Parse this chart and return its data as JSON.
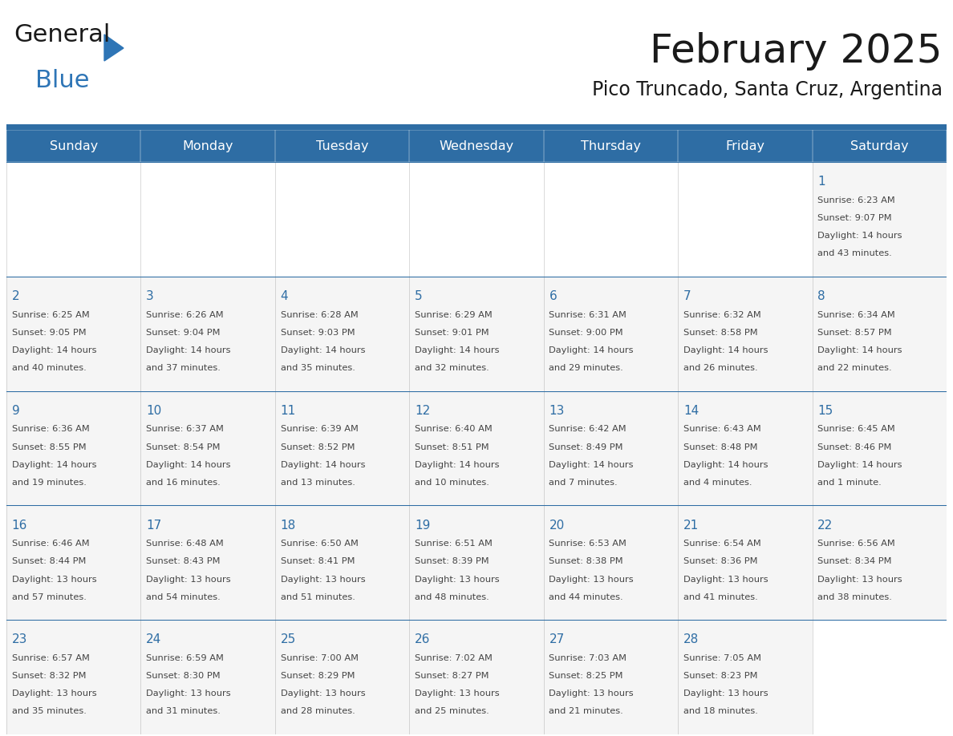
{
  "title": "February 2025",
  "subtitle": "Pico Truncado, Santa Cruz, Argentina",
  "days_of_week": [
    "Sunday",
    "Monday",
    "Tuesday",
    "Wednesday",
    "Thursday",
    "Friday",
    "Saturday"
  ],
  "header_bg": "#2E6DA4",
  "header_text": "#FFFFFF",
  "cell_bg_light": "#F5F5F5",
  "cell_bg_white": "#FFFFFF",
  "grid_line_color": "#2E6DA4",
  "day_num_color": "#2E6DA4",
  "text_color": "#444444",
  "logo_general_color": "#1a1a1a",
  "logo_blue_color": "#2E75B6",
  "calendar_data": [
    {
      "day": 1,
      "col": 6,
      "row": 0,
      "sunrise": "6:23 AM",
      "sunset": "9:07 PM",
      "daylight": "14 hours and 43 minutes."
    },
    {
      "day": 2,
      "col": 0,
      "row": 1,
      "sunrise": "6:25 AM",
      "sunset": "9:05 PM",
      "daylight": "14 hours and 40 minutes."
    },
    {
      "day": 3,
      "col": 1,
      "row": 1,
      "sunrise": "6:26 AM",
      "sunset": "9:04 PM",
      "daylight": "14 hours and 37 minutes."
    },
    {
      "day": 4,
      "col": 2,
      "row": 1,
      "sunrise": "6:28 AM",
      "sunset": "9:03 PM",
      "daylight": "14 hours and 35 minutes."
    },
    {
      "day": 5,
      "col": 3,
      "row": 1,
      "sunrise": "6:29 AM",
      "sunset": "9:01 PM",
      "daylight": "14 hours and 32 minutes."
    },
    {
      "day": 6,
      "col": 4,
      "row": 1,
      "sunrise": "6:31 AM",
      "sunset": "9:00 PM",
      "daylight": "14 hours and 29 minutes."
    },
    {
      "day": 7,
      "col": 5,
      "row": 1,
      "sunrise": "6:32 AM",
      "sunset": "8:58 PM",
      "daylight": "14 hours and 26 minutes."
    },
    {
      "day": 8,
      "col": 6,
      "row": 1,
      "sunrise": "6:34 AM",
      "sunset": "8:57 PM",
      "daylight": "14 hours and 22 minutes."
    },
    {
      "day": 9,
      "col": 0,
      "row": 2,
      "sunrise": "6:36 AM",
      "sunset": "8:55 PM",
      "daylight": "14 hours and 19 minutes."
    },
    {
      "day": 10,
      "col": 1,
      "row": 2,
      "sunrise": "6:37 AM",
      "sunset": "8:54 PM",
      "daylight": "14 hours and 16 minutes."
    },
    {
      "day": 11,
      "col": 2,
      "row": 2,
      "sunrise": "6:39 AM",
      "sunset": "8:52 PM",
      "daylight": "14 hours and 13 minutes."
    },
    {
      "day": 12,
      "col": 3,
      "row": 2,
      "sunrise": "6:40 AM",
      "sunset": "8:51 PM",
      "daylight": "14 hours and 10 minutes."
    },
    {
      "day": 13,
      "col": 4,
      "row": 2,
      "sunrise": "6:42 AM",
      "sunset": "8:49 PM",
      "daylight": "14 hours and 7 minutes."
    },
    {
      "day": 14,
      "col": 5,
      "row": 2,
      "sunrise": "6:43 AM",
      "sunset": "8:48 PM",
      "daylight": "14 hours and 4 minutes."
    },
    {
      "day": 15,
      "col": 6,
      "row": 2,
      "sunrise": "6:45 AM",
      "sunset": "8:46 PM",
      "daylight": "14 hours and 1 minute."
    },
    {
      "day": 16,
      "col": 0,
      "row": 3,
      "sunrise": "6:46 AM",
      "sunset": "8:44 PM",
      "daylight": "13 hours and 57 minutes."
    },
    {
      "day": 17,
      "col": 1,
      "row": 3,
      "sunrise": "6:48 AM",
      "sunset": "8:43 PM",
      "daylight": "13 hours and 54 minutes."
    },
    {
      "day": 18,
      "col": 2,
      "row": 3,
      "sunrise": "6:50 AM",
      "sunset": "8:41 PM",
      "daylight": "13 hours and 51 minutes."
    },
    {
      "day": 19,
      "col": 3,
      "row": 3,
      "sunrise": "6:51 AM",
      "sunset": "8:39 PM",
      "daylight": "13 hours and 48 minutes."
    },
    {
      "day": 20,
      "col": 4,
      "row": 3,
      "sunrise": "6:53 AM",
      "sunset": "8:38 PM",
      "daylight": "13 hours and 44 minutes."
    },
    {
      "day": 21,
      "col": 5,
      "row": 3,
      "sunrise": "6:54 AM",
      "sunset": "8:36 PM",
      "daylight": "13 hours and 41 minutes."
    },
    {
      "day": 22,
      "col": 6,
      "row": 3,
      "sunrise": "6:56 AM",
      "sunset": "8:34 PM",
      "daylight": "13 hours and 38 minutes."
    },
    {
      "day": 23,
      "col": 0,
      "row": 4,
      "sunrise": "6:57 AM",
      "sunset": "8:32 PM",
      "daylight": "13 hours and 35 minutes."
    },
    {
      "day": 24,
      "col": 1,
      "row": 4,
      "sunrise": "6:59 AM",
      "sunset": "8:30 PM",
      "daylight": "13 hours and 31 minutes."
    },
    {
      "day": 25,
      "col": 2,
      "row": 4,
      "sunrise": "7:00 AM",
      "sunset": "8:29 PM",
      "daylight": "13 hours and 28 minutes."
    },
    {
      "day": 26,
      "col": 3,
      "row": 4,
      "sunrise": "7:02 AM",
      "sunset": "8:27 PM",
      "daylight": "13 hours and 25 minutes."
    },
    {
      "day": 27,
      "col": 4,
      "row": 4,
      "sunrise": "7:03 AM",
      "sunset": "8:25 PM",
      "daylight": "13 hours and 21 minutes."
    },
    {
      "day": 28,
      "col": 5,
      "row": 4,
      "sunrise": "7:05 AM",
      "sunset": "8:23 PM",
      "daylight": "13 hours and 18 minutes."
    }
  ]
}
